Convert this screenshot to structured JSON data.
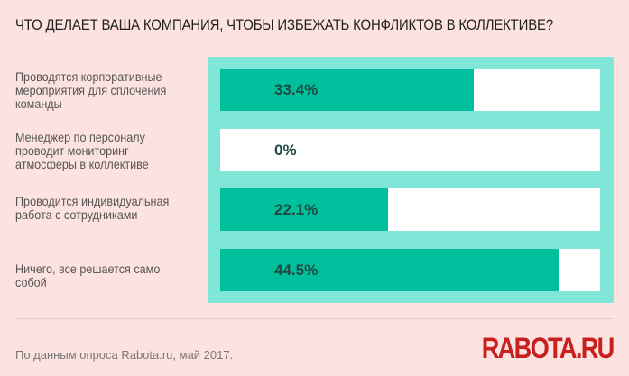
{
  "title": "ЧТО ДЕЛАЕТ ВАША КОМПАНИЯ, ЧТОБЫ ИЗБЕЖАТЬ КОНФЛИКТОВ В КОЛЛЕКТИВЕ?",
  "footer": "По данным опроса Rabota.ru, май 2017.",
  "logo": "RABOTA.RU",
  "colors": {
    "bar": "#00bf9d",
    "panel": "#80e6d8",
    "track": "#ffffff",
    "background": "#fde3df",
    "logo": "#c8201e"
  },
  "chart_data": {
    "type": "bar",
    "orientation": "horizontal",
    "title": "ЧТО ДЕЛАЕТ ВАША КОМПАНИЯ, ЧТОБЫ ИЗБЕЖАТЬ КОНФЛИКТОВ В КОЛЛЕКТИВЕ?",
    "categories": [
      "Проводятся корпоративные мероприятия для сплочения команды",
      "Менеджер по персоналу проводит мониторинг атмосферы в коллективе",
      "Проводится индивидуальная работа с сотрудниками",
      "Ничего, все решается само собой"
    ],
    "values": [
      33.4,
      0,
      22.1,
      44.5
    ],
    "value_labels": [
      "33.4%",
      "0%",
      "22.1%",
      "44.5%"
    ],
    "xlim": [
      0,
      50
    ],
    "grid": false
  }
}
